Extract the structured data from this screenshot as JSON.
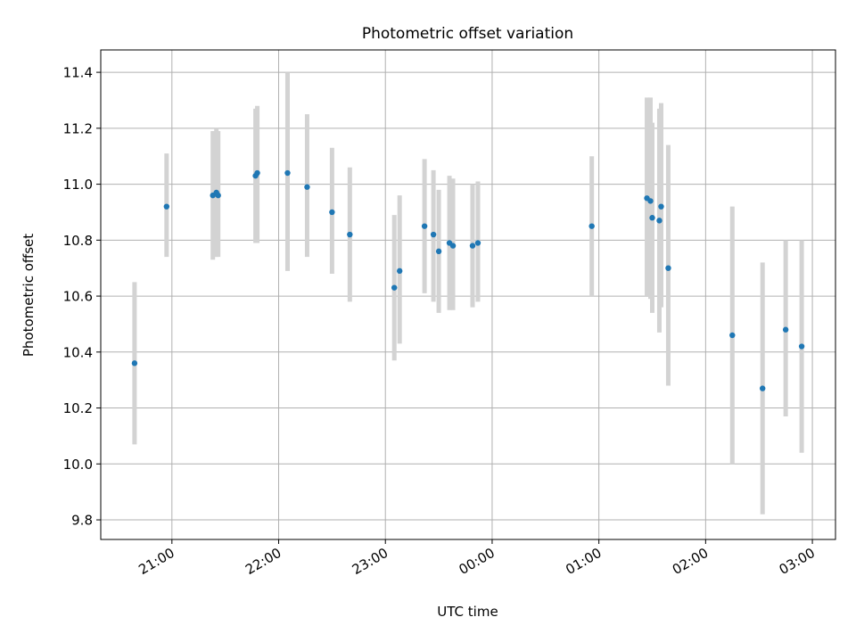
{
  "chart_data": {
    "type": "scatter",
    "title": "Photometric offset variation",
    "xlabel": "UTC time",
    "ylabel": "Photometric offset",
    "xlim": [
      "20:20",
      "03:13"
    ],
    "ylim": [
      9.73,
      11.48
    ],
    "grid": true,
    "x_ticks": [
      "21:00",
      "22:00",
      "23:00",
      "00:00",
      "01:00",
      "02:00",
      "03:00"
    ],
    "y_ticks": [
      9.8,
      10.0,
      10.2,
      10.4,
      10.6,
      10.8,
      11.0,
      11.2,
      11.4
    ],
    "colors": {
      "point": "#1f77b4",
      "errorbar": "#d3d3d3"
    },
    "points": [
      {
        "x": "20:39",
        "y": 10.36,
        "lo": 10.07,
        "hi": 10.65
      },
      {
        "x": "20:57",
        "y": 10.92,
        "lo": 10.74,
        "hi": 11.11
      },
      {
        "x": "21:23",
        "y": 10.96,
        "lo": 10.73,
        "hi": 11.19
      },
      {
        "x": "21:25",
        "y": 10.97,
        "lo": 10.74,
        "hi": 11.2
      },
      {
        "x": "21:26",
        "y": 10.96,
        "lo": 10.74,
        "hi": 11.19
      },
      {
        "x": "21:47",
        "y": 11.03,
        "lo": 10.79,
        "hi": 11.27
      },
      {
        "x": "21:48",
        "y": 11.04,
        "lo": 10.79,
        "hi": 11.28
      },
      {
        "x": "22:05",
        "y": 11.04,
        "lo": 10.69,
        "hi": 11.4
      },
      {
        "x": "22:16",
        "y": 10.99,
        "lo": 10.74,
        "hi": 11.25
      },
      {
        "x": "22:30",
        "y": 10.9,
        "lo": 10.68,
        "hi": 11.13
      },
      {
        "x": "22:40",
        "y": 10.82,
        "lo": 10.58,
        "hi": 11.06
      },
      {
        "x": "23:05",
        "y": 10.63,
        "lo": 10.37,
        "hi": 10.89
      },
      {
        "x": "23:08",
        "y": 10.69,
        "lo": 10.43,
        "hi": 10.96
      },
      {
        "x": "23:22",
        "y": 10.85,
        "lo": 10.61,
        "hi": 11.09
      },
      {
        "x": "23:27",
        "y": 10.82,
        "lo": 10.58,
        "hi": 11.05
      },
      {
        "x": "23:30",
        "y": 10.76,
        "lo": 10.54,
        "hi": 10.98
      },
      {
        "x": "23:36",
        "y": 10.79,
        "lo": 10.55,
        "hi": 11.03
      },
      {
        "x": "23:38",
        "y": 10.78,
        "lo": 10.55,
        "hi": 11.02
      },
      {
        "x": "23:49",
        "y": 10.78,
        "lo": 10.56,
        "hi": 11.0
      },
      {
        "x": "23:52",
        "y": 10.79,
        "lo": 10.58,
        "hi": 11.01
      },
      {
        "x": "00:56",
        "y": 10.85,
        "lo": 10.6,
        "hi": 11.1
      },
      {
        "x": "01:27",
        "y": 10.95,
        "lo": 10.6,
        "hi": 11.31
      },
      {
        "x": "01:29",
        "y": 10.94,
        "lo": 10.59,
        "hi": 11.31
      },
      {
        "x": "01:30",
        "y": 10.88,
        "lo": 10.54,
        "hi": 11.22
      },
      {
        "x": "01:34",
        "y": 10.87,
        "lo": 10.47,
        "hi": 11.27
      },
      {
        "x": "01:35",
        "y": 10.92,
        "lo": 10.56,
        "hi": 11.29
      },
      {
        "x": "01:39",
        "y": 10.7,
        "lo": 10.28,
        "hi": 11.14
      },
      {
        "x": "02:15",
        "y": 10.46,
        "lo": 10.0,
        "hi": 10.92
      },
      {
        "x": "02:32",
        "y": 10.27,
        "lo": 9.82,
        "hi": 10.72
      },
      {
        "x": "02:45",
        "y": 10.48,
        "lo": 10.17,
        "hi": 10.8
      },
      {
        "x": "02:54",
        "y": 10.42,
        "lo": 10.04,
        "hi": 10.8
      }
    ]
  }
}
